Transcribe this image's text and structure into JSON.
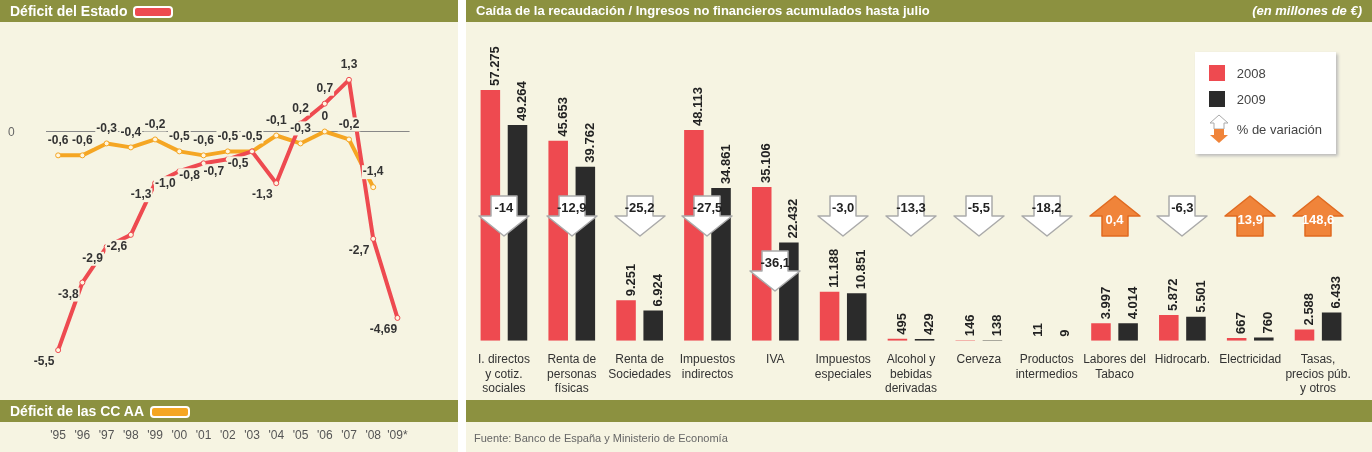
{
  "chart_data": [
    {
      "type": "line",
      "categories": [
        "'95",
        "'96",
        "'97",
        "'98",
        "'99",
        "'00",
        "'01",
        "'02",
        "'03",
        "'04",
        "'05",
        "'06",
        "'07",
        "'08",
        "'09*"
      ],
      "series": [
        {
          "name": "Déficit del Estado",
          "color": "#ee4a50",
          "values": [
            -5.5,
            -3.8,
            -2.9,
            -2.6,
            -1.3,
            -1.0,
            -0.8,
            -0.7,
            -0.5,
            -1.3,
            0.2,
            0.7,
            1.3,
            -2.7,
            -4.69
          ],
          "value_labels": [
            "-5,5",
            "-3,8",
            "-2,9",
            "-2,6",
            "-1,3",
            "-1,0",
            "-0,8",
            "-0,7",
            "-0,5",
            "-1,3",
            "0,2",
            "0,7",
            "1,3",
            "-2,7",
            "-4,69"
          ]
        },
        {
          "name": "Déficit de las CC AA",
          "color": "#f5a623",
          "values": [
            -0.6,
            -0.6,
            -0.3,
            -0.4,
            -0.2,
            -0.5,
            -0.6,
            -0.5,
            -0.5,
            -0.1,
            -0.3,
            0,
            -0.2,
            -1.4,
            null
          ],
          "value_labels": [
            "-0,6",
            "-0,6",
            "-0,3",
            "-0,4",
            "-0,2",
            "-0,5",
            "-0,6",
            "-0,5",
            "-0,5",
            "-0,1",
            "-0,3",
            "0",
            "-0,2",
            "-1,4",
            null
          ]
        }
      ],
      "ref_lines": [
        {
          "axis": "y",
          "value": 0,
          "color": "#888888"
        }
      ],
      "annotations": [
        "0"
      ],
      "legend": "top",
      "marker": "circle"
    },
    {
      "type": "bar",
      "title": "Caída de la recaudación / Ingresos no financieros acumulados hasta julio",
      "subtitle": "(en millones de €)",
      "categories": [
        "I. directos y cotiz. sociales",
        "Renta de personas físicas",
        "Renta de Sociedades",
        "Impuestos indirectos",
        "IVA",
        "Impuestos especiales",
        "Alcohol y bebidas derivadas",
        "Cerveza",
        "Productos intermedios",
        "Labores del Tabaco",
        "Hidrocarb.",
        "Electricidad",
        "Tasas, precios púb. y otros"
      ],
      "series": [
        {
          "name": "2008",
          "color": "#ee4a50",
          "values": [
            57275,
            45653,
            9251,
            48113,
            35106,
            11188,
            495,
            146,
            11,
            3997,
            5872,
            667,
            2588
          ],
          "value_labels": [
            "57.275",
            "45.653",
            "9.251",
            "48.113",
            "35.106",
            "11.188",
            "495",
            "146",
            "11",
            "3.997",
            "5.872",
            "667",
            "2.588"
          ]
        },
        {
          "name": "2009",
          "color": "#2b2b2b",
          "values": [
            49264,
            39762,
            6924,
            34861,
            22432,
            10851,
            429,
            138,
            9,
            4014,
            5501,
            760,
            6433
          ],
          "value_labels": [
            "49.264",
            "39.762",
            "6.924",
            "34.861",
            "22.432",
            "10.851",
            "429",
            "138",
            "9",
            "4.014",
            "5.501",
            "760",
            "6.433"
          ]
        }
      ],
      "legend": "top right",
      "annotations": [
        "-14",
        "-12,9",
        "-25,2",
        "-27,5",
        "-36,1",
        "-3,0",
        "-13,3",
        "-5,5",
        "-18,2",
        "0,4",
        "-6,3",
        "13,9",
        "148,6",
        "% de variación",
        "Fuente: Banco de España y Ministerio de Economía"
      ]
    }
  ]
}
